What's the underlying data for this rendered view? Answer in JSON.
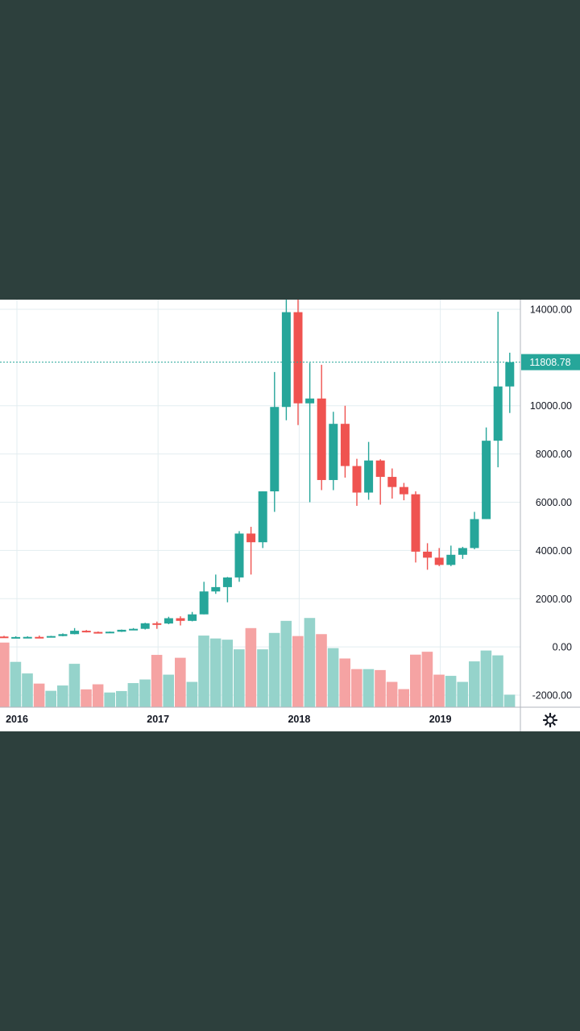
{
  "colors": {
    "up": "#26a69a",
    "down": "#ef5350",
    "volume_up": "#95d3cb",
    "volume_down": "#f5a3a3",
    "grid": "#e3edf0",
    "axis_text": "#131722",
    "price_label_bg": "#26a69a"
  },
  "settings": {
    "icon": "gear-icon"
  },
  "chart_data": {
    "type": "candlestick",
    "interval": "monthly",
    "ylim": [
      -2500,
      14400
    ],
    "y_ticks": [
      "14000.00",
      "10000.00",
      "8000.00",
      "6000.00",
      "4000.00",
      "2000.00",
      "0.00",
      "-2000.00"
    ],
    "x_ticks": [
      {
        "label": "2016",
        "index": 0
      },
      {
        "label": "2017",
        "index": 12
      },
      {
        "label": "2018",
        "index": 24
      },
      {
        "label": "2019",
        "index": 36
      }
    ],
    "last_price": 11808.78,
    "last_price_label": "11808.78",
    "candles": [
      {
        "o": 430,
        "h": 460,
        "l": 410,
        "c": 370,
        "v": 180
      },
      {
        "o": 370,
        "h": 440,
        "l": 360,
        "c": 410,
        "v": -620
      },
      {
        "o": 410,
        "h": 440,
        "l": 400,
        "c": 415,
        "v": -1100
      },
      {
        "o": 415,
        "h": 470,
        "l": 400,
        "c": 410,
        "v": -1520
      },
      {
        "o": 410,
        "h": 460,
        "l": 400,
        "c": 450,
        "v": -1820
      },
      {
        "o": 450,
        "h": 560,
        "l": 440,
        "c": 530,
        "v": -1600
      },
      {
        "o": 530,
        "h": 780,
        "l": 520,
        "c": 670,
        "v": -700
      },
      {
        "o": 670,
        "h": 700,
        "l": 600,
        "c": 620,
        "v": -1760
      },
      {
        "o": 620,
        "h": 640,
        "l": 560,
        "c": 600,
        "v": -1550
      },
      {
        "o": 600,
        "h": 640,
        "l": 590,
        "c": 630,
        "v": -1890
      },
      {
        "o": 630,
        "h": 720,
        "l": 620,
        "c": 710,
        "v": -1830
      },
      {
        "o": 710,
        "h": 780,
        "l": 700,
        "c": 750,
        "v": -1500
      },
      {
        "o": 750,
        "h": 1000,
        "l": 720,
        "c": 980,
        "v": -1350
      },
      {
        "o": 980,
        "h": 1050,
        "l": 750,
        "c": 970,
        "v": -330
      },
      {
        "o": 970,
        "h": 1250,
        "l": 940,
        "c": 1190,
        "v": -1150
      },
      {
        "o": 1190,
        "h": 1270,
        "l": 890,
        "c": 1080,
        "v": -450
      },
      {
        "o": 1080,
        "h": 1450,
        "l": 1060,
        "c": 1350,
        "v": -1450
      },
      {
        "o": 1350,
        "h": 2700,
        "l": 1350,
        "c": 2300,
        "v": 470
      },
      {
        "o": 2300,
        "h": 3000,
        "l": 2200,
        "c": 2480,
        "v": 350
      },
      {
        "o": 2480,
        "h": 2900,
        "l": 1850,
        "c": 2880,
        "v": 300
      },
      {
        "o": 2880,
        "h": 4800,
        "l": 2700,
        "c": 4700,
        "v": -100
      },
      {
        "o": 4700,
        "h": 4980,
        "l": 3000,
        "c": 4340,
        "v": 780
      },
      {
        "o": 4340,
        "h": 6450,
        "l": 4100,
        "c": 6450,
        "v": -100
      },
      {
        "o": 6450,
        "h": 11400,
        "l": 5600,
        "c": 9950,
        "v": 580
      },
      {
        "o": 9950,
        "h": 14400,
        "l": 9400,
        "c": 13880,
        "v": 1080
      },
      {
        "o": 13880,
        "h": 14400,
        "l": 9200,
        "c": 10100,
        "v": 450
      },
      {
        "o": 10100,
        "h": 11780,
        "l": 6000,
        "c": 10300,
        "v": 1200
      },
      {
        "o": 10300,
        "h": 11700,
        "l": 6500,
        "c": 6920,
        "v": 530
      },
      {
        "o": 6920,
        "h": 9750,
        "l": 6500,
        "c": 9250,
        "v": -50
      },
      {
        "o": 9250,
        "h": 10000,
        "l": 7020,
        "c": 7500,
        "v": -480
      },
      {
        "o": 7500,
        "h": 7800,
        "l": 5850,
        "c": 6400,
        "v": -920
      },
      {
        "o": 6400,
        "h": 8500,
        "l": 6100,
        "c": 7730,
        "v": -920
      },
      {
        "o": 7730,
        "h": 7780,
        "l": 5900,
        "c": 7050,
        "v": -960
      },
      {
        "o": 7050,
        "h": 7400,
        "l": 6150,
        "c": 6630,
        "v": -1450
      },
      {
        "o": 6630,
        "h": 6800,
        "l": 6080,
        "c": 6330,
        "v": -1750
      },
      {
        "o": 6330,
        "h": 6450,
        "l": 3500,
        "c": 3950,
        "v": -320
      },
      {
        "o": 3950,
        "h": 4300,
        "l": 3200,
        "c": 3700,
        "v": -200
      },
      {
        "o": 3700,
        "h": 4100,
        "l": 3350,
        "c": 3400,
        "v": -1150
      },
      {
        "o": 3400,
        "h": 4200,
        "l": 3350,
        "c": 3820,
        "v": -1200
      },
      {
        "o": 3820,
        "h": 4150,
        "l": 3650,
        "c": 4100,
        "v": -1450
      },
      {
        "o": 4100,
        "h": 5600,
        "l": 4050,
        "c": 5300,
        "v": -600
      },
      {
        "o": 5300,
        "h": 9100,
        "l": 5300,
        "c": 8550,
        "v": -150
      },
      {
        "o": 8550,
        "h": 13900,
        "l": 7450,
        "c": 10800,
        "v": -350
      },
      {
        "o": 10800,
        "h": 12200,
        "l": 9700,
        "c": 11808.78,
        "v": -1980
      }
    ]
  }
}
